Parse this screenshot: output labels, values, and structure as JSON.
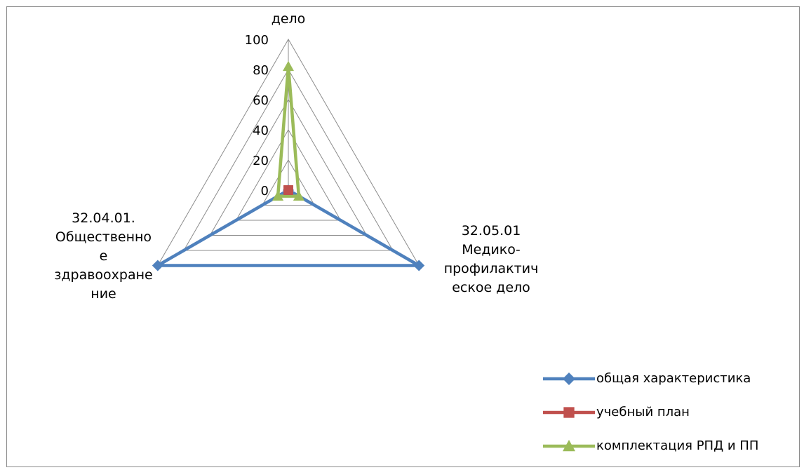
{
  "chart_data": {
    "type": "radar",
    "categories": [
      "дело",
      "32.05.01 Медико-профилактическое дело",
      "32.04.01. Общественное здравоохранение"
    ],
    "category_lines": [
      [
        "дело"
      ],
      [
        "32.05.01",
        "Медико-",
        "профилактич",
        "еское дело"
      ],
      [
        "32.04.01.",
        "Общественно",
        "е",
        "здравоохране",
        "ние"
      ]
    ],
    "radial_axis": {
      "min": 0,
      "max": 100,
      "step": 20,
      "ticks": [
        "0",
        "20",
        "40",
        "60",
        "80",
        "100"
      ]
    },
    "series": [
      {
        "name": "общая характеристика",
        "color": "#4f81bd",
        "marker": "diamond",
        "values": [
          0,
          100,
          100
        ]
      },
      {
        "name": "учебный план",
        "color": "#c0504d",
        "marker": "square",
        "values": [
          0,
          0,
          0
        ]
      },
      {
        "name": "комплектация РПД и ПП",
        "color": "#9bbb59",
        "marker": "triangle",
        "values": [
          82,
          8,
          8
        ]
      }
    ],
    "legend_position": "bottom-right",
    "grid": true
  }
}
